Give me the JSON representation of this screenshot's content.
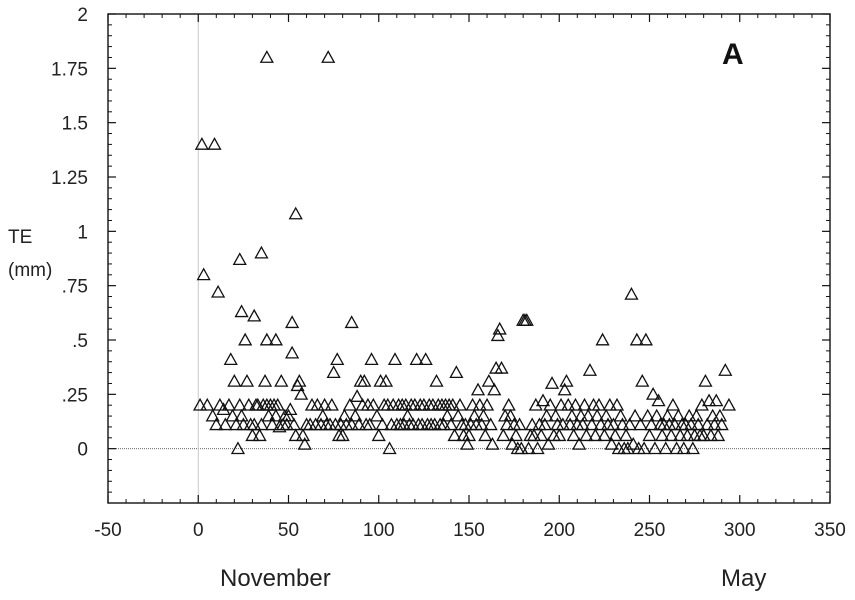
{
  "chart_data": {
    "type": "scatter",
    "panel_label": "A",
    "ylabel_line1": "TE",
    "ylabel_line2": "(mm)",
    "xlim": [
      -50,
      350
    ],
    "ylim": [
      -0.25,
      2
    ],
    "xticks": [
      {
        "v": -50,
        "label": "-50"
      },
      {
        "v": 0,
        "label": "0"
      },
      {
        "v": 50,
        "label": "50"
      },
      {
        "v": 100,
        "label": "100"
      },
      {
        "v": 150,
        "label": "150"
      },
      {
        "v": 200,
        "label": "200"
      },
      {
        "v": 250,
        "label": "250"
      },
      {
        "v": 300,
        "label": "300"
      },
      {
        "v": 350,
        "label": "350"
      }
    ],
    "yticks": [
      {
        "v": 0,
        "label": "0"
      },
      {
        "v": 0.25,
        "label": ".25"
      },
      {
        "v": 0.5,
        "label": ".5"
      },
      {
        "v": 0.75,
        "label": ".75"
      },
      {
        "v": 1,
        "label": "1"
      },
      {
        "v": 1.25,
        "label": "1.25"
      },
      {
        "v": 1.5,
        "label": "1.5"
      },
      {
        "v": 1.75,
        "label": "1.75"
      },
      {
        "v": 2,
        "label": "2"
      }
    ],
    "reference_line_y": 0,
    "reference_line_x": 0,
    "month_labels": {
      "left": "November",
      "right": "May"
    },
    "marker": "open-triangle",
    "points": [
      [
        2,
        1.4
      ],
      [
        9,
        1.4
      ],
      [
        38,
        1.8
      ],
      [
        72,
        1.8
      ],
      [
        54,
        1.08
      ],
      [
        35,
        0.9
      ],
      [
        3,
        0.8
      ],
      [
        23,
        0.87
      ],
      [
        11,
        0.72
      ],
      [
        24,
        0.63
      ],
      [
        31,
        0.61
      ],
      [
        18,
        0.41
      ],
      [
        26,
        0.5
      ],
      [
        38,
        0.5
      ],
      [
        43,
        0.5
      ],
      [
        52,
        0.58
      ],
      [
        52,
        0.44
      ],
      [
        85,
        0.58
      ],
      [
        1,
        0.2
      ],
      [
        5,
        0.2
      ],
      [
        8,
        0.15
      ],
      [
        10,
        0.11
      ],
      [
        12,
        0.2
      ],
      [
        14,
        0.18
      ],
      [
        15,
        0.11
      ],
      [
        17,
        0.2
      ],
      [
        19,
        0.15
      ],
      [
        20,
        0.31
      ],
      [
        21,
        0.11
      ],
      [
        22,
        0.0
      ],
      [
        23,
        0.2
      ],
      [
        24,
        0.15
      ],
      [
        25,
        0.11
      ],
      [
        27,
        0.31
      ],
      [
        28,
        0.2
      ],
      [
        29,
        0.11
      ],
      [
        30,
        0.06
      ],
      [
        31,
        0.11
      ],
      [
        32,
        0.2
      ],
      [
        33,
        0.2
      ],
      [
        34,
        0.06
      ],
      [
        35,
        0.11
      ],
      [
        36,
        0.2
      ],
      [
        37,
        0.31
      ],
      [
        38,
        0.2
      ],
      [
        39,
        0.15
      ],
      [
        40,
        0.2
      ],
      [
        41,
        0.11
      ],
      [
        42,
        0.2
      ],
      [
        43,
        0.15
      ],
      [
        44,
        0.2
      ],
      [
        45,
        0.1
      ],
      [
        46,
        0.31
      ],
      [
        47,
        0.11
      ],
      [
        48,
        0.15
      ],
      [
        49,
        0.11
      ],
      [
        50,
        0.15
      ],
      [
        51,
        0.18
      ],
      [
        53,
        0.11
      ],
      [
        54,
        0.06
      ],
      [
        55,
        0.29
      ],
      [
        56,
        0.31
      ],
      [
        57,
        0.25
      ],
      [
        58,
        0.06
      ],
      [
        59,
        0.02
      ],
      [
        60,
        0.11
      ],
      [
        62,
        0.11
      ],
      [
        63,
        0.2
      ],
      [
        65,
        0.11
      ],
      [
        66,
        0.2
      ],
      [
        68,
        0.11
      ],
      [
        69,
        0.15
      ],
      [
        70,
        0.2
      ],
      [
        71,
        0.11
      ],
      [
        73,
        0.11
      ],
      [
        74,
        0.2
      ],
      [
        75,
        0.35
      ],
      [
        76,
        0.11
      ],
      [
        77,
        0.41
      ],
      [
        78,
        0.06
      ],
      [
        79,
        0.11
      ],
      [
        80,
        0.06
      ],
      [
        81,
        0.15
      ],
      [
        82,
        0.11
      ],
      [
        84,
        0.2
      ],
      [
        85,
        0.11
      ],
      [
        87,
        0.15
      ],
      [
        88,
        0.24
      ],
      [
        89,
        0.11
      ],
      [
        90,
        0.31
      ],
      [
        91,
        0.2
      ],
      [
        92,
        0.31
      ],
      [
        93,
        0.11
      ],
      [
        94,
        0.2
      ],
      [
        95,
        0.11
      ],
      [
        96,
        0.41
      ],
      [
        97,
        0.2
      ],
      [
        99,
        0.15
      ],
      [
        100,
        0.06
      ],
      [
        101,
        0.31
      ],
      [
        102,
        0.11
      ],
      [
        103,
        0.2
      ],
      [
        104,
        0.31
      ],
      [
        105,
        0.2
      ],
      [
        106,
        0.0
      ],
      [
        107,
        0.11
      ],
      [
        108,
        0.2
      ],
      [
        109,
        0.41
      ],
      [
        110,
        0.11
      ],
      [
        111,
        0.2
      ],
      [
        112,
        0.11
      ],
      [
        113,
        0.2
      ],
      [
        114,
        0.11
      ],
      [
        115,
        0.2
      ],
      [
        116,
        0.15
      ],
      [
        117,
        0.11
      ],
      [
        118,
        0.2
      ],
      [
        119,
        0.11
      ],
      [
        120,
        0.2
      ],
      [
        121,
        0.41
      ],
      [
        122,
        0.11
      ],
      [
        123,
        0.2
      ],
      [
        124,
        0.11
      ],
      [
        125,
        0.2
      ],
      [
        126,
        0.41
      ],
      [
        127,
        0.11
      ],
      [
        128,
        0.2
      ],
      [
        129,
        0.11
      ],
      [
        130,
        0.2
      ],
      [
        131,
        0.11
      ],
      [
        132,
        0.31
      ],
      [
        133,
        0.2
      ],
      [
        134,
        0.11
      ],
      [
        135,
        0.2
      ],
      [
        136,
        0.11
      ],
      [
        137,
        0.2
      ],
      [
        138,
        0.15
      ],
      [
        139,
        0.2
      ],
      [
        140,
        0.11
      ],
      [
        141,
        0.2
      ],
      [
        142,
        0.06
      ],
      [
        143,
        0.35
      ],
      [
        144,
        0.15
      ],
      [
        145,
        0.2
      ],
      [
        146,
        0.11
      ],
      [
        147,
        0.06
      ],
      [
        148,
        0.11
      ],
      [
        149,
        0.02
      ],
      [
        150,
        0.06
      ],
      [
        151,
        0.11
      ],
      [
        152,
        0.2
      ],
      [
        153,
        0.15
      ],
      [
        154,
        0.11
      ],
      [
        155,
        0.27
      ],
      [
        156,
        0.2
      ],
      [
        157,
        0.11
      ],
      [
        158,
        0.15
      ],
      [
        159,
        0.06
      ],
      [
        160,
        0.2
      ],
      [
        161,
        0.31
      ],
      [
        162,
        0.11
      ],
      [
        163,
        0.02
      ],
      [
        164,
        0.27
      ],
      [
        165,
        0.37
      ],
      [
        166,
        0.52
      ],
      [
        167,
        0.55
      ],
      [
        168,
        0.37
      ],
      [
        169,
        0.06
      ],
      [
        170,
        0.15
      ],
      [
        171,
        0.11
      ],
      [
        172,
        0.2
      ],
      [
        173,
        0.15
      ],
      [
        174,
        0.02
      ],
      [
        175,
        0.11
      ],
      [
        176,
        0.06
      ],
      [
        177,
        0.0
      ],
      [
        178,
        0.11
      ],
      [
        179,
        0.0
      ],
      [
        180,
        0.59
      ],
      [
        181,
        0.59
      ],
      [
        182,
        0.59
      ],
      [
        183,
        0.0
      ],
      [
        184,
        0.06
      ],
      [
        185,
        0.11
      ],
      [
        186,
        0.06
      ],
      [
        187,
        0.2
      ],
      [
        188,
        0.0
      ],
      [
        189,
        0.11
      ],
      [
        190,
        0.06
      ],
      [
        191,
        0.22
      ],
      [
        192,
        0.11
      ],
      [
        193,
        0.15
      ],
      [
        194,
        0.02
      ],
      [
        195,
        0.2
      ],
      [
        196,
        0.3
      ],
      [
        197,
        0.06
      ],
      [
        198,
        0.15
      ],
      [
        199,
        0.11
      ],
      [
        200,
        0.06
      ],
      [
        201,
        0.2
      ],
      [
        202,
        0.11
      ],
      [
        203,
        0.27
      ],
      [
        204,
        0.31
      ],
      [
        205,
        0.2
      ],
      [
        206,
        0.11
      ],
      [
        207,
        0.15
      ],
      [
        208,
        0.06
      ],
      [
        209,
        0.2
      ],
      [
        210,
        0.11
      ],
      [
        211,
        0.02
      ],
      [
        212,
        0.15
      ],
      [
        213,
        0.11
      ],
      [
        214,
        0.2
      ],
      [
        215,
        0.06
      ],
      [
        216,
        0.15
      ],
      [
        217,
        0.36
      ],
      [
        218,
        0.11
      ],
      [
        219,
        0.2
      ],
      [
        220,
        0.06
      ],
      [
        221,
        0.15
      ],
      [
        222,
        0.2
      ],
      [
        223,
        0.11
      ],
      [
        224,
        0.5
      ],
      [
        225,
        0.06
      ],
      [
        226,
        0.15
      ],
      [
        227,
        0.11
      ],
      [
        228,
        0.2
      ],
      [
        229,
        0.02
      ],
      [
        230,
        0.11
      ],
      [
        231,
        0.06
      ],
      [
        232,
        0.2
      ],
      [
        233,
        0.0
      ],
      [
        234,
        0.15
      ],
      [
        235,
        0.11
      ],
      [
        236,
        0.0
      ],
      [
        237,
        0.06
      ],
      [
        238,
        0.0
      ],
      [
        239,
        0.11
      ],
      [
        240,
        0.71
      ],
      [
        241,
        0.02
      ],
      [
        242,
        0.15
      ],
      [
        243,
        0.5
      ],
      [
        244,
        0.0
      ],
      [
        245,
        0.11
      ],
      [
        246,
        0.31
      ],
      [
        247,
        0.0
      ],
      [
        248,
        0.5
      ],
      [
        249,
        0.15
      ],
      [
        250,
        0.06
      ],
      [
        251,
        0.11
      ],
      [
        252,
        0.25
      ],
      [
        253,
        0.0
      ],
      [
        254,
        0.15
      ],
      [
        255,
        0.22
      ],
      [
        256,
        0.11
      ],
      [
        257,
        0.06
      ],
      [
        258,
        0.11
      ],
      [
        259,
        0.0
      ],
      [
        260,
        0.15
      ],
      [
        261,
        0.11
      ],
      [
        262,
        0.06
      ],
      [
        263,
        0.2
      ],
      [
        264,
        0.11
      ],
      [
        265,
        0.0
      ],
      [
        266,
        0.15
      ],
      [
        267,
        0.06
      ],
      [
        268,
        0.11
      ],
      [
        269,
        0.0
      ],
      [
        270,
        0.11
      ],
      [
        271,
        0.06
      ],
      [
        272,
        0.15
      ],
      [
        273,
        0.11
      ],
      [
        274,
        0.0
      ],
      [
        275,
        0.06
      ],
      [
        276,
        0.15
      ],
      [
        277,
        0.11
      ],
      [
        278,
        0.06
      ],
      [
        279,
        0.2
      ],
      [
        280,
        0.06
      ],
      [
        281,
        0.31
      ],
      [
        282,
        0.11
      ],
      [
        283,
        0.22
      ],
      [
        284,
        0.06
      ],
      [
        285,
        0.15
      ],
      [
        286,
        0.11
      ],
      [
        287,
        0.22
      ],
      [
        288,
        0.06
      ],
      [
        289,
        0.15
      ],
      [
        290,
        0.11
      ],
      [
        292,
        0.36
      ],
      [
        294,
        0.2
      ]
    ]
  }
}
